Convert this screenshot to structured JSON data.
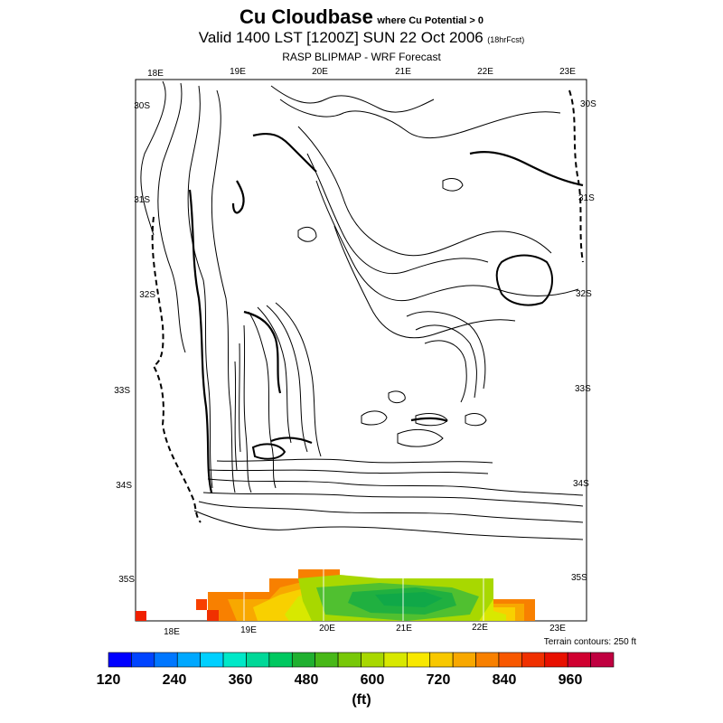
{
  "header": {
    "title_main": "Cu Cloudbase",
    "title_suffix": "where Cu Potential > 0",
    "valid_main": "Valid 1400 LST [1200Z] SUN 22 Oct 2006",
    "valid_suffix": "(18hrFcst)",
    "subtitle": "RASP BLIPMAP - WRF Forecast"
  },
  "map": {
    "lon_labels_top": [
      "18E",
      "19E",
      "20E",
      "21E",
      "22E",
      "23E"
    ],
    "lon_labels_bottom": [
      "18E",
      "19E",
      "20E",
      "21E",
      "22E",
      "23E"
    ],
    "lat_labels_left": [
      "30S",
      "31S",
      "32S",
      "33S",
      "34S",
      "35S"
    ],
    "lat_labels_right": [
      "30S",
      "31S",
      "32S",
      "33S",
      "34S",
      "35S"
    ],
    "terrain_note": "Terrain contours: 250 ft"
  },
  "colorbar": {
    "unit": "(ft)",
    "tick_labels": [
      "120",
      "240",
      "360",
      "480",
      "600",
      "720",
      "840",
      "960"
    ],
    "colors": [
      "#0000ff",
      "#0044ff",
      "#0077ff",
      "#00a8ff",
      "#00d0ff",
      "#00e8c8",
      "#00d898",
      "#00c860",
      "#20b030",
      "#48b818",
      "#78c808",
      "#a8d800",
      "#d8e800",
      "#f8e800",
      "#f8c800",
      "#f8a800",
      "#f88000",
      "#f85800",
      "#f03000",
      "#e81000",
      "#d00030",
      "#c00040"
    ]
  }
}
